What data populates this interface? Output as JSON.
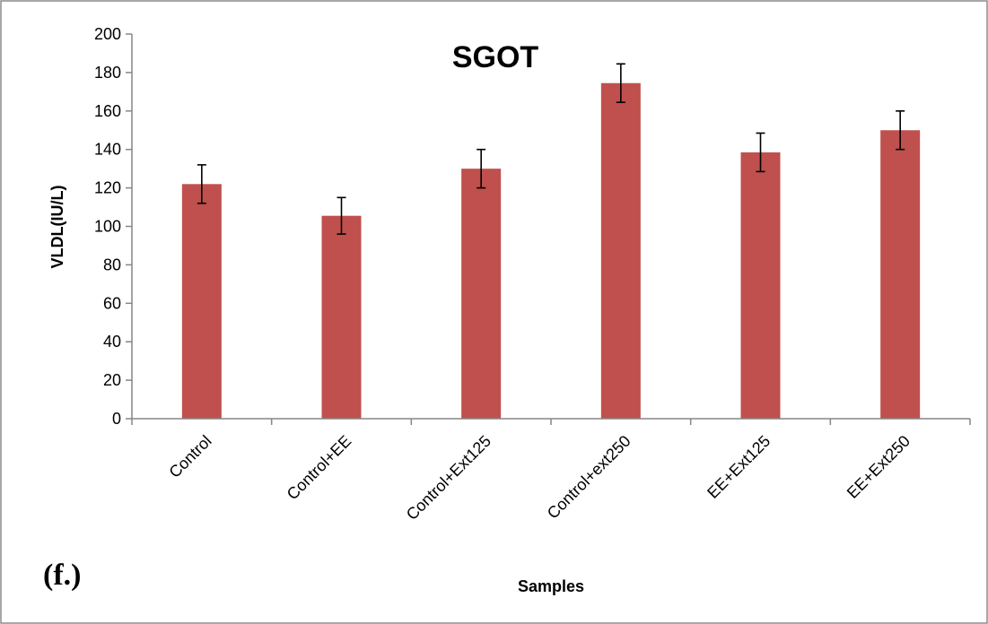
{
  "panel_label": "(f.)",
  "chart_data": {
    "type": "bar",
    "title": "SGOT",
    "xlabel": "Samples",
    "ylabel": "VLDL(IU/L)",
    "ylim": [
      0,
      200
    ],
    "ytick_step": 20,
    "yticks": [
      "0",
      "20",
      "40",
      "60",
      "80",
      "100",
      "120",
      "140",
      "160",
      "180",
      "200"
    ],
    "categories": [
      "Control",
      "Control+EE",
      "Control+Ext125",
      "Control+ext250",
      "EE+Ext125",
      "EE+Ext250"
    ],
    "values": [
      122,
      105.5,
      130,
      174.5,
      138.5,
      150
    ],
    "errors": [
      10,
      9.5,
      10,
      10,
      10,
      10
    ],
    "bar_color": "#c0504d",
    "grid": false,
    "legend": "none"
  }
}
